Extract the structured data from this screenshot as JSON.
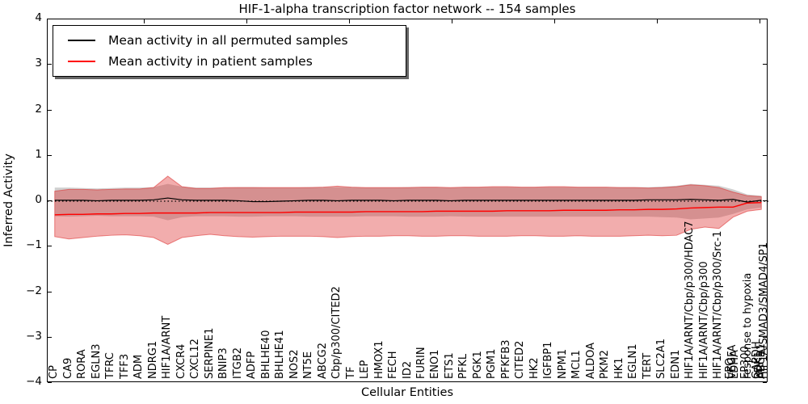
{
  "chart_data": {
    "type": "line",
    "title": "HIF-1-alpha transcription factor network -- 154 samples",
    "xlabel": "Cellular Entities",
    "ylabel": "Inferred Activity",
    "ylim": [
      -4,
      4
    ],
    "yticks": [
      -4,
      -3,
      -2,
      -1,
      0,
      1,
      2,
      3,
      4
    ],
    "grid": false,
    "legend_position": "upper left",
    "legend": [
      {
        "label": "Mean activity in all permuted samples",
        "color": "#000000"
      },
      {
        "label": "Mean activity in patient samples",
        "color": "#ff0000"
      }
    ],
    "zero_line": {
      "y": 0,
      "style": "dotted",
      "color": "#000000"
    },
    "colors": {
      "permuted_line": "#000000",
      "patient_line": "#ff0000",
      "permuted_band_fill": "rgba(120,120,120,0.35)",
      "patient_band_fill": "rgba(220,40,40,0.38)",
      "patient_band_edge": "rgba(220,40,40,0.55)"
    },
    "categories": [
      "CP",
      "CA9",
      "RORA",
      "EGLN3",
      "TFRC",
      "TFF3",
      "ADM",
      "NDRG1",
      "HIF1A/ARNT",
      "CXCR4",
      "CXCL12",
      "SERPINE1",
      "BNIP3",
      "ITGB2",
      "ADFP",
      "BHLHE40",
      "BHLHE41",
      "NOS2",
      "NT5E",
      "ABCG2",
      "Cbp/p300/CITED2",
      "TF",
      "LEP",
      "HMOX1",
      "FECH",
      "ID2",
      "FURIN",
      "ENO1",
      "ETS1",
      "PFKL",
      "PGK1",
      "PGM1",
      "PFKFB3",
      "CITED2",
      "HK2",
      "IGFBP1",
      "NPM1",
      "MCL1",
      "ALDOA",
      "PKM2",
      "HK1",
      "EGLN1",
      "TERT",
      "SLC2A1",
      "EDN1",
      "HIF1A/ARNT/Cbp/p300/HDAC7",
      "HIF1A/ARNT/Cbp/p300",
      "HIF1A/ARNT/Cbp/p300/Src-1",
      [
        "EPO",
        "VEGFA",
        "LDHA"
      ],
      [
        "EP300",
        "response to hypoxia"
      ],
      [
        "GAPDH",
        "PDK1",
        "ABCB1",
        "HIF1A/SMAD3/SMAD4/SP1"
      ]
    ],
    "series": [
      {
        "name": "Mean activity in all permuted samples",
        "type": "line",
        "color": "#000000",
        "values": [
          0.02,
          0.02,
          0.02,
          0.01,
          0.02,
          0.02,
          0.02,
          0.03,
          0.07,
          0.03,
          0.02,
          0.02,
          0.02,
          0.01,
          -0.01,
          -0.01,
          0.0,
          0.01,
          0.02,
          0.02,
          0.01,
          0.02,
          0.02,
          0.02,
          0.01,
          0.02,
          0.02,
          0.02,
          0.01,
          0.02,
          0.02,
          0.02,
          0.02,
          0.02,
          0.02,
          0.02,
          0.02,
          0.02,
          0.02,
          0.02,
          0.02,
          0.02,
          0.03,
          0.03,
          0.03,
          0.04,
          0.03,
          0.02,
          0.04,
          -0.02,
          0.02
        ]
      },
      {
        "name": "Mean activity in patient samples",
        "type": "line",
        "color": "#ff0000",
        "values": [
          -0.3,
          -0.29,
          -0.29,
          -0.28,
          -0.28,
          -0.27,
          -0.27,
          -0.26,
          -0.26,
          -0.26,
          -0.26,
          -0.25,
          -0.25,
          -0.25,
          -0.25,
          -0.25,
          -0.25,
          -0.24,
          -0.24,
          -0.24,
          -0.24,
          -0.24,
          -0.23,
          -0.23,
          -0.23,
          -0.23,
          -0.23,
          -0.22,
          -0.22,
          -0.22,
          -0.22,
          -0.22,
          -0.21,
          -0.21,
          -0.21,
          -0.21,
          -0.2,
          -0.2,
          -0.2,
          -0.2,
          -0.19,
          -0.19,
          -0.18,
          -0.18,
          -0.17,
          -0.15,
          -0.14,
          -0.13,
          -0.13,
          -0.04,
          -0.03
        ]
      },
      {
        "name": "permuted samples std band",
        "type": "band",
        "upper": [
          0.3,
          0.3,
          0.29,
          0.28,
          0.29,
          0.3,
          0.3,
          0.31,
          0.38,
          0.32,
          0.3,
          0.3,
          0.3,
          0.31,
          0.31,
          0.3,
          0.3,
          0.3,
          0.31,
          0.31,
          0.31,
          0.31,
          0.3,
          0.3,
          0.3,
          0.31,
          0.31,
          0.31,
          0.3,
          0.31,
          0.31,
          0.31,
          0.31,
          0.31,
          0.31,
          0.31,
          0.31,
          0.31,
          0.31,
          0.31,
          0.31,
          0.31,
          0.31,
          0.32,
          0.34,
          0.38,
          0.36,
          0.34,
          0.26,
          0.15,
          0.12
        ],
        "lower": [
          -0.33,
          -0.34,
          -0.33,
          -0.32,
          -0.33,
          -0.33,
          -0.33,
          -0.34,
          -0.42,
          -0.35,
          -0.33,
          -0.33,
          -0.33,
          -0.34,
          -0.34,
          -0.33,
          -0.33,
          -0.33,
          -0.34,
          -0.34,
          -0.34,
          -0.34,
          -0.33,
          -0.33,
          -0.33,
          -0.34,
          -0.34,
          -0.34,
          -0.33,
          -0.34,
          -0.34,
          -0.34,
          -0.34,
          -0.34,
          -0.34,
          -0.34,
          -0.34,
          -0.34,
          -0.34,
          -0.34,
          -0.34,
          -0.34,
          -0.34,
          -0.35,
          -0.36,
          -0.4,
          -0.38,
          -0.36,
          -0.28,
          -0.18,
          -0.14
        ]
      },
      {
        "name": "patient samples std band",
        "type": "band",
        "upper": [
          0.22,
          0.26,
          0.26,
          0.25,
          0.26,
          0.27,
          0.27,
          0.3,
          0.55,
          0.32,
          0.28,
          0.28,
          0.3,
          0.3,
          0.3,
          0.3,
          0.3,
          0.3,
          0.3,
          0.31,
          0.33,
          0.31,
          0.3,
          0.3,
          0.3,
          0.3,
          0.31,
          0.31,
          0.3,
          0.31,
          0.31,
          0.32,
          0.32,
          0.31,
          0.31,
          0.32,
          0.32,
          0.31,
          0.31,
          0.31,
          0.3,
          0.3,
          0.29,
          0.3,
          0.32,
          0.36,
          0.34,
          0.3,
          0.2,
          0.12,
          0.1
        ],
        "lower": [
          -0.78,
          -0.83,
          -0.8,
          -0.77,
          -0.75,
          -0.74,
          -0.76,
          -0.8,
          -0.95,
          -0.8,
          -0.76,
          -0.73,
          -0.76,
          -0.78,
          -0.79,
          -0.78,
          -0.77,
          -0.77,
          -0.77,
          -0.78,
          -0.8,
          -0.78,
          -0.77,
          -0.77,
          -0.76,
          -0.76,
          -0.77,
          -0.77,
          -0.76,
          -0.76,
          -0.77,
          -0.77,
          -0.77,
          -0.76,
          -0.76,
          -0.77,
          -0.77,
          -0.76,
          -0.77,
          -0.77,
          -0.77,
          -0.76,
          -0.75,
          -0.76,
          -0.75,
          -0.62,
          -0.57,
          -0.6,
          -0.35,
          -0.22,
          -0.18
        ]
      }
    ]
  }
}
